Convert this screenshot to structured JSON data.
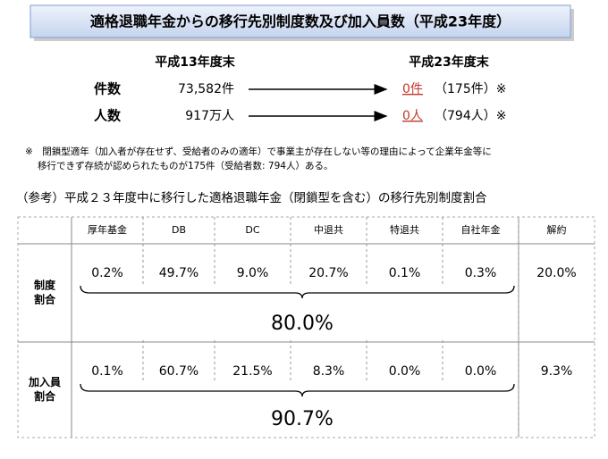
{
  "header": {
    "title": "適格退職年金からの移行先別制度数及び加入員数（平成23年度）"
  },
  "summary": {
    "columns": [
      "平成13年度末",
      "平成23年度末"
    ],
    "rows": [
      {
        "label": "件数",
        "before": "73,582件",
        "after": "0件",
        "note": "（175件）※"
      },
      {
        "label": "人数",
        "before": "917万人",
        "after": "0人",
        "note": "（794人）※"
      }
    ]
  },
  "footnote": [
    "※　閉鎖型適年（加入者が存在せず、受給者のみの適年）で事業主が存在しない等の理由によって企業年金等に",
    "移行できず存続が認められたものが175件（受給者数: 794人）ある。"
  ],
  "reference": {
    "title": "（参考）平成２３年度中に移行した適格退職年金（閉鎖型を含む）の移行先別制度割合",
    "table": {
      "headers": [
        "厚年基金",
        "DB",
        "DC",
        "中退共",
        "特退共",
        "自社年金",
        "解約"
      ],
      "rows": [
        {
          "label": [
            "制度",
            "割合"
          ],
          "cells": [
            "0.2%",
            "49.7%",
            "9.0%",
            "20.7%",
            "0.1%",
            "0.3%",
            "20.0%"
          ],
          "total": "80.0%"
        },
        {
          "label": [
            "加入員",
            "割合"
          ],
          "cells": [
            "0.1%",
            "60.7%",
            "21.5%",
            "8.3%",
            "0.0%",
            "0.0%",
            "9.3%"
          ],
          "total": "90.7%"
        }
      ]
    }
  }
}
